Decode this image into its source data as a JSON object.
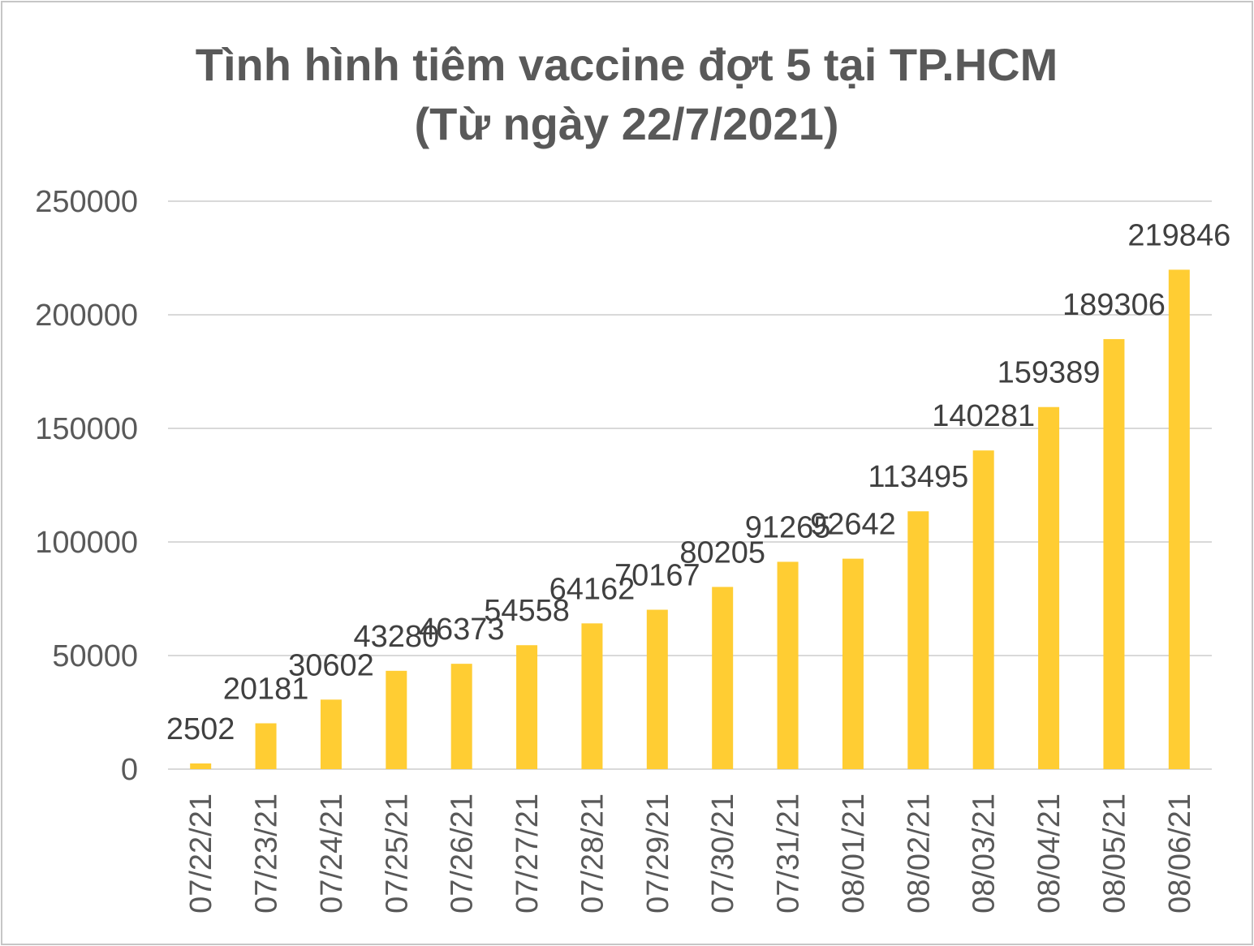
{
  "chart_data": {
    "type": "bar",
    "title": "Tình hình tiêm vaccine đợt 5 tại TP.HCM",
    "subtitle": "(Từ ngày 22/7/2021)",
    "categories": [
      "07/22/21",
      "07/23/21",
      "07/24/21",
      "07/25/21",
      "07/26/21",
      "07/27/21",
      "07/28/21",
      "07/29/21",
      "07/30/21",
      "07/31/21",
      "08/01/21",
      "08/02/21",
      "08/03/21",
      "08/04/21",
      "08/05/21",
      "08/06/21"
    ],
    "values": [
      2502,
      20181,
      30602,
      43280,
      46373,
      54558,
      64162,
      70167,
      80205,
      91265,
      92642,
      113495,
      140281,
      159389,
      189306,
      219846
    ],
    "ylim": [
      0,
      250000
    ],
    "yticks": [
      0,
      50000,
      100000,
      150000,
      200000,
      250000
    ],
    "grid": true,
    "data_labels": true,
    "bar_color": "#FFCD33"
  }
}
